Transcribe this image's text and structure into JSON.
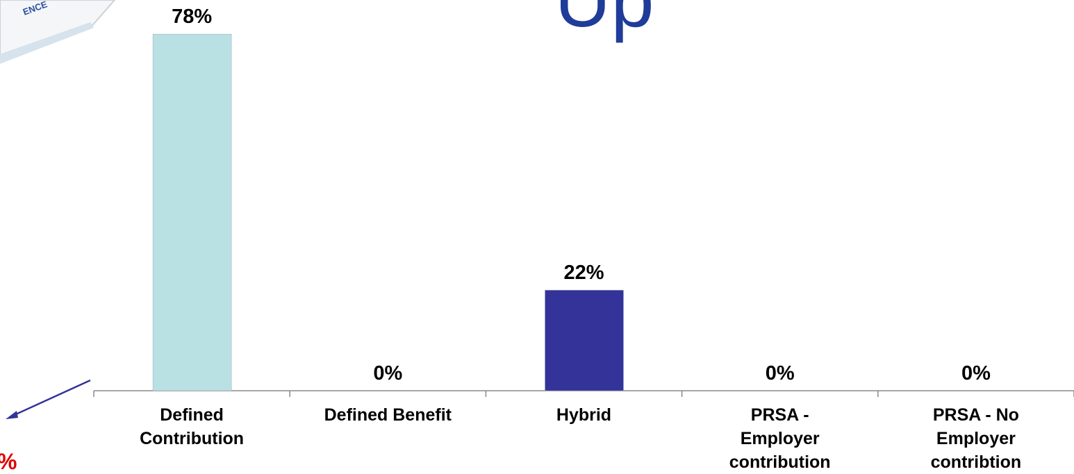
{
  "chart_data": {
    "type": "bar",
    "title": "Up",
    "categories": [
      "Defined Contribution",
      "Defined Benefit",
      "Hybrid",
      "PRSA - Employer contribution",
      "PRSA - No Employer contribtion"
    ],
    "values": [
      78,
      0,
      22,
      0,
      0
    ],
    "value_labels": [
      "78%",
      "0%",
      "22%",
      "0%",
      "0%"
    ],
    "colors": [
      "#b9e0e3",
      "#b9e0e3",
      "#333399",
      "#333399",
      "#333399"
    ],
    "ylim": [
      0,
      80
    ],
    "annotations": [
      "ENCE",
      "%"
    ]
  }
}
